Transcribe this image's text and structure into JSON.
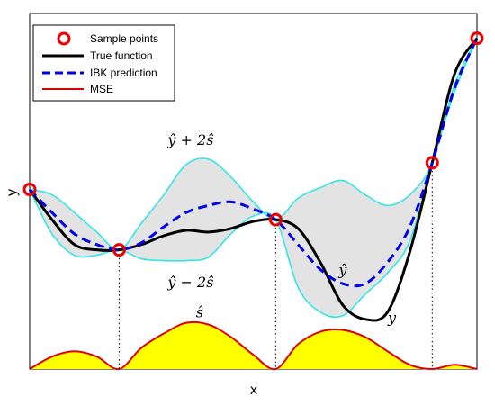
{
  "chart_data": {
    "type": "line",
    "title": "",
    "xlabel": "x",
    "ylabel": "y",
    "xlim": [
      0,
      1
    ],
    "ylim": [
      0,
      1
    ],
    "grid": false,
    "legend_position": "top-left",
    "sample_points": {
      "name": "Sample points",
      "x": [
        0.0,
        0.2,
        0.55,
        0.9,
        1.0
      ],
      "y": [
        0.505,
        0.335,
        0.42,
        0.58,
        0.93
      ]
    },
    "series": [
      {
        "name": "True function",
        "color": "#000000",
        "x": [
          0.0,
          0.05,
          0.1,
          0.15,
          0.2,
          0.25,
          0.3,
          0.35,
          0.4,
          0.45,
          0.5,
          0.55,
          0.6,
          0.65,
          0.7,
          0.75,
          0.8,
          0.85,
          0.9,
          0.95,
          1.0
        ],
        "y": [
          0.505,
          0.42,
          0.35,
          0.335,
          0.335,
          0.35,
          0.375,
          0.39,
          0.385,
          0.395,
          0.415,
          0.42,
          0.395,
          0.3,
          0.18,
          0.14,
          0.16,
          0.33,
          0.58,
          0.83,
          0.93
        ]
      },
      {
        "name": "IBK prediction",
        "color": "#0000ee",
        "x": [
          0.0,
          0.05,
          0.1,
          0.15,
          0.2,
          0.25,
          0.3,
          0.35,
          0.4,
          0.45,
          0.5,
          0.55,
          0.6,
          0.65,
          0.7,
          0.75,
          0.8,
          0.85,
          0.9,
          0.95,
          1.0
        ],
        "y": [
          0.505,
          0.44,
          0.38,
          0.35,
          0.335,
          0.355,
          0.4,
          0.44,
          0.46,
          0.47,
          0.45,
          0.42,
          0.35,
          0.28,
          0.24,
          0.24,
          0.3,
          0.4,
          0.58,
          0.79,
          0.93
        ]
      },
      {
        "name": "MSE",
        "color": "#dd0000",
        "x": [
          0.0,
          0.05,
          0.1,
          0.15,
          0.2,
          0.25,
          0.3,
          0.35,
          0.4,
          0.45,
          0.5,
          0.55,
          0.6,
          0.65,
          0.7,
          0.75,
          0.8,
          0.85,
          0.9,
          0.95,
          1.0
        ],
        "y": [
          0.0,
          0.035,
          0.05,
          0.035,
          0.0,
          0.06,
          0.1,
          0.13,
          0.125,
          0.09,
          0.04,
          0.0,
          0.07,
          0.105,
          0.11,
          0.09,
          0.05,
          0.012,
          0.0,
          0.012,
          0.0
        ]
      }
    ],
    "confidence_band": {
      "upper": [
        0.505,
        0.49,
        0.44,
        0.385,
        0.335,
        0.41,
        0.49,
        0.575,
        0.59,
        0.54,
        0.47,
        0.42,
        0.48,
        0.51,
        0.53,
        0.49,
        0.46,
        0.49,
        0.58,
        0.8,
        0.93
      ],
      "lower": [
        0.505,
        0.38,
        0.32,
        0.32,
        0.335,
        0.31,
        0.305,
        0.305,
        0.315,
        0.38,
        0.43,
        0.42,
        0.23,
        0.16,
        0.15,
        0.21,
        0.27,
        0.36,
        0.58,
        0.78,
        0.93
      ]
    },
    "annotations": [
      {
        "name": "upper-label",
        "text": "ŷ + 2ŝ"
      },
      {
        "name": "lower-label",
        "text": "ŷ − 2ŝ"
      },
      {
        "name": "yhat-label",
        "text": "ŷ"
      },
      {
        "name": "y-label",
        "text": "y"
      },
      {
        "name": "shat-label",
        "text": "ŝ"
      }
    ],
    "colors": {
      "band_fill": "#e3e3e3",
      "band_edge": "#33e6e6",
      "mse_fill": "#ffff00",
      "sample_marker": "#ee0000"
    }
  }
}
